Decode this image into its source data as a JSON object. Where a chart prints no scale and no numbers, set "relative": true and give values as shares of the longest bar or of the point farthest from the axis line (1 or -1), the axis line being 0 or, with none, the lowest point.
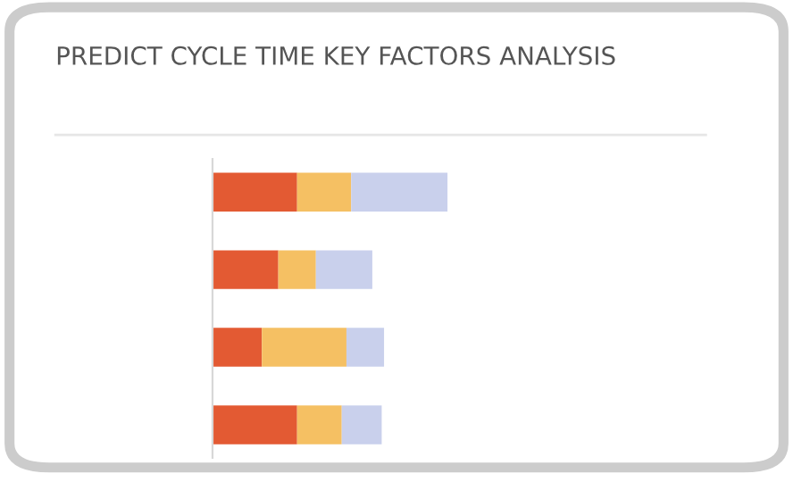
{
  "chart_data": {
    "type": "bar",
    "orientation": "horizontal",
    "stacked": true,
    "relative": true,
    "title": "PREDICT CYCLE TIME KEY FACTORS ANALYSIS",
    "categories": [
      null,
      null,
      null,
      null
    ],
    "series": [
      {
        "color": "#e35a33",
        "values": [
          0.36,
          0.28,
          0.21,
          0.36
        ]
      },
      {
        "color": "#f5c063",
        "values": [
          0.23,
          0.16,
          0.36,
          0.19
        ]
      },
      {
        "color": "#c9d0ec",
        "values": [
          0.41,
          0.24,
          0.16,
          0.17
        ]
      }
    ],
    "legend": false
  }
}
